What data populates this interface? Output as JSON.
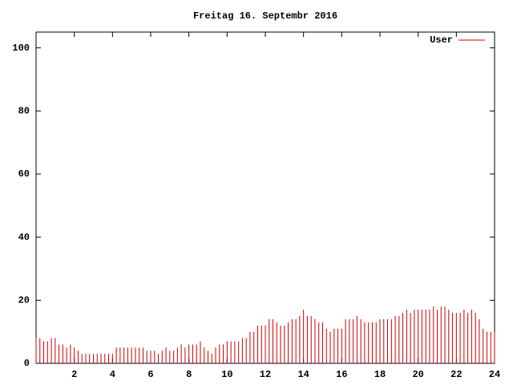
{
  "chart_data": {
    "type": "bar",
    "title": "Freitag 16. Septembr 2016",
    "x": [
      0,
      0.2,
      0.4,
      0.6,
      0.8,
      1,
      1.2,
      1.4,
      1.6,
      1.8,
      2,
      2.2,
      2.4,
      2.6,
      2.8,
      3,
      3.2,
      3.4,
      3.6,
      3.8,
      4,
      4.2,
      4.4,
      4.6,
      4.8,
      5,
      5.2,
      5.4,
      5.6,
      5.8,
      6,
      6.2,
      6.4,
      6.6,
      6.8,
      7,
      7.2,
      7.4,
      7.6,
      7.8,
      8,
      8.2,
      8.4,
      8.6,
      8.8,
      9,
      9.2,
      9.4,
      9.6,
      9.8,
      10,
      10.2,
      10.4,
      10.6,
      10.8,
      11,
      11.2,
      11.4,
      11.6,
      11.8,
      12,
      12.2,
      12.4,
      12.6,
      12.8,
      13,
      13.2,
      13.4,
      13.6,
      13.8,
      14,
      14.2,
      14.4,
      14.6,
      14.8,
      15,
      15.2,
      15.4,
      15.6,
      15.8,
      16,
      16.2,
      16.4,
      16.6,
      16.8,
      17,
      17.2,
      17.4,
      17.6,
      17.8,
      18,
      18.2,
      18.4,
      18.6,
      18.8,
      19,
      19.2,
      19.4,
      19.6,
      19.8,
      20,
      20.2,
      20.4,
      20.6,
      20.8,
      21,
      21.2,
      21.4,
      21.6,
      21.8,
      22,
      22.2,
      22.4,
      22.6,
      22.8,
      23,
      23.2,
      23.4,
      23.6,
      23.8,
      24
    ],
    "series": [
      {
        "name": "User",
        "color": "#cc0000",
        "values": [
          8,
          8,
          7,
          7,
          8,
          8,
          6,
          6,
          5,
          6,
          5,
          4,
          3,
          3,
          3,
          3,
          3,
          3,
          3,
          3,
          3,
          5,
          5,
          5,
          5,
          5,
          5,
          5,
          5,
          4,
          4,
          4,
          3,
          4,
          5,
          4,
          4,
          5,
          6,
          5,
          6,
          6,
          6,
          7,
          5,
          4,
          3,
          5,
          6,
          6,
          7,
          7,
          7,
          7,
          8,
          8,
          10,
          10,
          12,
          12,
          12,
          14,
          14,
          13,
          12,
          12,
          13,
          14,
          14,
          15,
          17,
          15,
          15,
          14,
          13,
          13,
          11,
          10,
          11,
          11,
          11,
          14,
          14,
          14,
          15,
          14,
          13,
          13,
          13,
          13,
          14,
          14,
          14,
          14,
          15,
          15,
          16,
          17,
          16,
          17,
          17,
          17,
          17,
          17,
          18,
          17,
          18,
          18,
          17,
          16,
          16,
          16,
          17,
          16,
          17,
          16,
          14,
          11,
          10,
          10,
          10
        ]
      }
    ],
    "xlim": [
      0,
      24
    ],
    "xticks": [
      2,
      4,
      6,
      8,
      10,
      12,
      14,
      16,
      18,
      20,
      22,
      24
    ],
    "ylim": [
      0,
      105
    ],
    "yticks": [
      0,
      20,
      40,
      60,
      80,
      100
    ],
    "legend": "top-right"
  }
}
